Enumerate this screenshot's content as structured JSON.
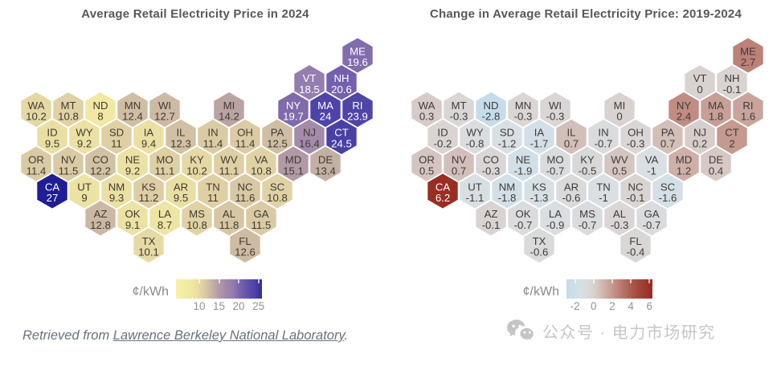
{
  "chart_data": [
    {
      "type": "hexmap",
      "title": "Average Retail Electricity Price in 2024",
      "unit_label": "¢/kWh",
      "legend_ticks": [
        "10",
        "15",
        "20",
        "25"
      ],
      "legend_domain": [
        4.1,
        25.9
      ],
      "legend_position": "bottom",
      "light_text_min": 17.5,
      "label_color_dark": "#403a31",
      "label_color_light": "#ffffff",
      "colormap_stops": [
        [
          4,
          "#f7f0a9"
        ],
        [
          8,
          "#f1e9a3"
        ],
        [
          9.5,
          "#eadfa3"
        ],
        [
          11,
          "#dfd0a4"
        ],
        [
          12.5,
          "#cfbda4"
        ],
        [
          14.2,
          "#b9a3a3"
        ],
        [
          15.1,
          "#b299a6"
        ],
        [
          16.4,
          "#a48bab"
        ],
        [
          18.5,
          "#957eae"
        ],
        [
          19.7,
          "#7f6aac"
        ],
        [
          20.6,
          "#7560ae"
        ],
        [
          22,
          "#6553ac"
        ],
        [
          23.9,
          "#4f44a8"
        ],
        [
          24.5,
          "#4940a6"
        ],
        [
          25.5,
          "#3833a0"
        ],
        [
          27,
          "#1f1e95"
        ]
      ],
      "states": [
        {
          "abbr": "ME",
          "row": 0,
          "col": 20,
          "value": "19.6"
        },
        {
          "abbr": "VT",
          "row": 1,
          "col": 17,
          "value": "18.5"
        },
        {
          "abbr": "NH",
          "row": 1,
          "col": 19,
          "value": "20.6"
        },
        {
          "abbr": "WA",
          "row": 2,
          "col": 0,
          "value": "10.2"
        },
        {
          "abbr": "MT",
          "row": 2,
          "col": 2,
          "value": "10.8"
        },
        {
          "abbr": "ND",
          "row": 2,
          "col": 4,
          "value": "8"
        },
        {
          "abbr": "MN",
          "row": 2,
          "col": 6,
          "value": "12.4"
        },
        {
          "abbr": "WI",
          "row": 2,
          "col": 8,
          "value": "12.7"
        },
        {
          "abbr": "MI",
          "row": 2,
          "col": 12,
          "value": "14.2"
        },
        {
          "abbr": "NY",
          "row": 2,
          "col": 16,
          "value": "19.7"
        },
        {
          "abbr": "MA",
          "row": 2,
          "col": 18,
          "value": "24"
        },
        {
          "abbr": "RI",
          "row": 2,
          "col": 20,
          "value": "23.9"
        },
        {
          "abbr": "ID",
          "row": 3,
          "col": 1,
          "value": "9.5"
        },
        {
          "abbr": "WY",
          "row": 3,
          "col": 3,
          "value": "9.2"
        },
        {
          "abbr": "SD",
          "row": 3,
          "col": 5,
          "value": "11"
        },
        {
          "abbr": "IA",
          "row": 3,
          "col": 7,
          "value": "9.4"
        },
        {
          "abbr": "IL",
          "row": 3,
          "col": 9,
          "value": "12.3"
        },
        {
          "abbr": "IN",
          "row": 3,
          "col": 11,
          "value": "11.4"
        },
        {
          "abbr": "OH",
          "row": 3,
          "col": 13,
          "value": "11.4"
        },
        {
          "abbr": "PA",
          "row": 3,
          "col": 15,
          "value": "12.5"
        },
        {
          "abbr": "NJ",
          "row": 3,
          "col": 17,
          "value": "16.4"
        },
        {
          "abbr": "CT",
          "row": 3,
          "col": 19,
          "value": "24.5"
        },
        {
          "abbr": "OR",
          "row": 4,
          "col": 0,
          "value": "11.4"
        },
        {
          "abbr": "NV",
          "row": 4,
          "col": 2,
          "value": "11.5"
        },
        {
          "abbr": "CO",
          "row": 4,
          "col": 4,
          "value": "12.2"
        },
        {
          "abbr": "NE",
          "row": 4,
          "col": 6,
          "value": "9.2"
        },
        {
          "abbr": "MO",
          "row": 4,
          "col": 8,
          "value": "11.1"
        },
        {
          "abbr": "KY",
          "row": 4,
          "col": 10,
          "value": "10.2"
        },
        {
          "abbr": "WV",
          "row": 4,
          "col": 12,
          "value": "11.1"
        },
        {
          "abbr": "VA",
          "row": 4,
          "col": 14,
          "value": "10.8"
        },
        {
          "abbr": "MD",
          "row": 4,
          "col": 16,
          "value": "15.1"
        },
        {
          "abbr": "DE",
          "row": 4,
          "col": 18,
          "value": "13.4"
        },
        {
          "abbr": "CA",
          "row": 5,
          "col": 1,
          "value": "27"
        },
        {
          "abbr": "UT",
          "row": 5,
          "col": 3,
          "value": "9"
        },
        {
          "abbr": "NM",
          "row": 5,
          "col": 5,
          "value": "9.3"
        },
        {
          "abbr": "KS",
          "row": 5,
          "col": 7,
          "value": "11.2"
        },
        {
          "abbr": "AR",
          "row": 5,
          "col": 9,
          "value": "9.5"
        },
        {
          "abbr": "TN",
          "row": 5,
          "col": 11,
          "value": "11"
        },
        {
          "abbr": "NC",
          "row": 5,
          "col": 13,
          "value": "11.6"
        },
        {
          "abbr": "SC",
          "row": 5,
          "col": 15,
          "value": "10.8"
        },
        {
          "abbr": "AZ",
          "row": 6,
          "col": 4,
          "value": "12.8"
        },
        {
          "abbr": "OK",
          "row": 6,
          "col": 6,
          "value": "9.1"
        },
        {
          "abbr": "LA",
          "row": 6,
          "col": 8,
          "value": "8.7"
        },
        {
          "abbr": "MS",
          "row": 6,
          "col": 10,
          "value": "10.8"
        },
        {
          "abbr": "AL",
          "row": 6,
          "col": 12,
          "value": "11.8"
        },
        {
          "abbr": "GA",
          "row": 6,
          "col": 14,
          "value": "11.5"
        },
        {
          "abbr": "TX",
          "row": 7,
          "col": 7,
          "value": "10.1"
        },
        {
          "abbr": "FL",
          "row": 7,
          "col": 13,
          "value": "12.6"
        }
      ]
    },
    {
      "type": "hexmap",
      "title": "Change in Average Retail Electricity Price: 2019-2024",
      "unit_label": "¢/kWh",
      "legend_ticks": [
        "-2",
        "0",
        "2",
        "4",
        "6"
      ],
      "legend_domain": [
        -2.92,
        6.32
      ],
      "legend_position": "bottom",
      "light_text_min": 4.0,
      "label_color_dark": "#403a3a",
      "label_color_light": "#ffffff",
      "colormap_stops": [
        [
          -2.9,
          "#c4dcea"
        ],
        [
          -2.3,
          "#ccdee8"
        ],
        [
          -1.8,
          "#d2dfe7"
        ],
        [
          -1.3,
          "#d7e0e4"
        ],
        [
          -0.9,
          "#d9dee1"
        ],
        [
          -0.5,
          "#d9d8d8"
        ],
        [
          -0.2,
          "#d9d5d3"
        ],
        [
          0,
          "#d8d2d0"
        ],
        [
          0.4,
          "#d6c8c4"
        ],
        [
          0.8,
          "#d2bcb6"
        ],
        [
          1.2,
          "#ceb0a9"
        ],
        [
          1.6,
          "#c9a49c"
        ],
        [
          2,
          "#c59990"
        ],
        [
          2.4,
          "#c08c83"
        ],
        [
          2.7,
          "#bc8177"
        ],
        [
          3.5,
          "#b16a5e"
        ],
        [
          4.5,
          "#a64f43"
        ],
        [
          5.5,
          "#9e392e"
        ],
        [
          6.3,
          "#982b20"
        ]
      ],
      "states": [
        {
          "abbr": "ME",
          "row": 0,
          "col": 20,
          "value": "2.7"
        },
        {
          "abbr": "VT",
          "row": 1,
          "col": 17,
          "value": "0"
        },
        {
          "abbr": "NH",
          "row": 1,
          "col": 19,
          "value": "-0.1"
        },
        {
          "abbr": "WA",
          "row": 2,
          "col": 0,
          "value": "0.3"
        },
        {
          "abbr": "MT",
          "row": 2,
          "col": 2,
          "value": "-0.3"
        },
        {
          "abbr": "ND",
          "row": 2,
          "col": 4,
          "value": "-2.8"
        },
        {
          "abbr": "MN",
          "row": 2,
          "col": 6,
          "value": "-0.3"
        },
        {
          "abbr": "WI",
          "row": 2,
          "col": 8,
          "value": "-0.3"
        },
        {
          "abbr": "MI",
          "row": 2,
          "col": 12,
          "value": "0"
        },
        {
          "abbr": "NY",
          "row": 2,
          "col": 16,
          "value": "2.4"
        },
        {
          "abbr": "MA",
          "row": 2,
          "col": 18,
          "value": "1.8"
        },
        {
          "abbr": "RI",
          "row": 2,
          "col": 20,
          "value": "1.6"
        },
        {
          "abbr": "ID",
          "row": 3,
          "col": 1,
          "value": "-0.2"
        },
        {
          "abbr": "WY",
          "row": 3,
          "col": 3,
          "value": "-0.8"
        },
        {
          "abbr": "SD",
          "row": 3,
          "col": 5,
          "value": "-1.2"
        },
        {
          "abbr": "IA",
          "row": 3,
          "col": 7,
          "value": "-1.7"
        },
        {
          "abbr": "IL",
          "row": 3,
          "col": 9,
          "value": "0.7"
        },
        {
          "abbr": "IN",
          "row": 3,
          "col": 11,
          "value": "-0.7"
        },
        {
          "abbr": "OH",
          "row": 3,
          "col": 13,
          "value": "-0.3"
        },
        {
          "abbr": "PA",
          "row": 3,
          "col": 15,
          "value": "0.7"
        },
        {
          "abbr": "NJ",
          "row": 3,
          "col": 17,
          "value": "0.2"
        },
        {
          "abbr": "CT",
          "row": 3,
          "col": 19,
          "value": "2"
        },
        {
          "abbr": "OR",
          "row": 4,
          "col": 0,
          "value": "0.5"
        },
        {
          "abbr": "NV",
          "row": 4,
          "col": 2,
          "value": "0.7"
        },
        {
          "abbr": "CO",
          "row": 4,
          "col": 4,
          "value": "-0.3"
        },
        {
          "abbr": "NE",
          "row": 4,
          "col": 6,
          "value": "-1.9"
        },
        {
          "abbr": "MO",
          "row": 4,
          "col": 8,
          "value": "-0.7"
        },
        {
          "abbr": "KY",
          "row": 4,
          "col": 10,
          "value": "-0.5"
        },
        {
          "abbr": "WV",
          "row": 4,
          "col": 12,
          "value": "0.5"
        },
        {
          "abbr": "VA",
          "row": 4,
          "col": 14,
          "value": "-1"
        },
        {
          "abbr": "MD",
          "row": 4,
          "col": 16,
          "value": "1.2"
        },
        {
          "abbr": "DE",
          "row": 4,
          "col": 18,
          "value": "0.4"
        },
        {
          "abbr": "CA",
          "row": 5,
          "col": 1,
          "value": "6.2"
        },
        {
          "abbr": "UT",
          "row": 5,
          "col": 3,
          "value": "-1.1"
        },
        {
          "abbr": "NM",
          "row": 5,
          "col": 5,
          "value": "-1.8"
        },
        {
          "abbr": "KS",
          "row": 5,
          "col": 7,
          "value": "-1.3"
        },
        {
          "abbr": "AR",
          "row": 5,
          "col": 9,
          "value": "-0.6"
        },
        {
          "abbr": "TN",
          "row": 5,
          "col": 11,
          "value": "-1"
        },
        {
          "abbr": "NC",
          "row": 5,
          "col": 13,
          "value": "-0.1"
        },
        {
          "abbr": "SC",
          "row": 5,
          "col": 15,
          "value": "-1.6"
        },
        {
          "abbr": "AZ",
          "row": 6,
          "col": 4,
          "value": "-0.1"
        },
        {
          "abbr": "OK",
          "row": 6,
          "col": 6,
          "value": "-0.7"
        },
        {
          "abbr": "LA",
          "row": 6,
          "col": 8,
          "value": "-0.9"
        },
        {
          "abbr": "MS",
          "row": 6,
          "col": 10,
          "value": "-0.7"
        },
        {
          "abbr": "AL",
          "row": 6,
          "col": 12,
          "value": "-0.3"
        },
        {
          "abbr": "GA",
          "row": 6,
          "col": 14,
          "value": "-0.7"
        },
        {
          "abbr": "TX",
          "row": 7,
          "col": 7,
          "value": "-0.6"
        },
        {
          "abbr": "FL",
          "row": 7,
          "col": 13,
          "value": "-0.4"
        }
      ]
    }
  ],
  "footer": {
    "prefix": "Retrieved from ",
    "link_text": "Lawrence Berkeley National Laboratory",
    "suffix": "."
  },
  "watermark": {
    "icon": "wechat-icon",
    "text": "公众号 · 电力市场研究",
    "color": "#c5c5c5"
  }
}
